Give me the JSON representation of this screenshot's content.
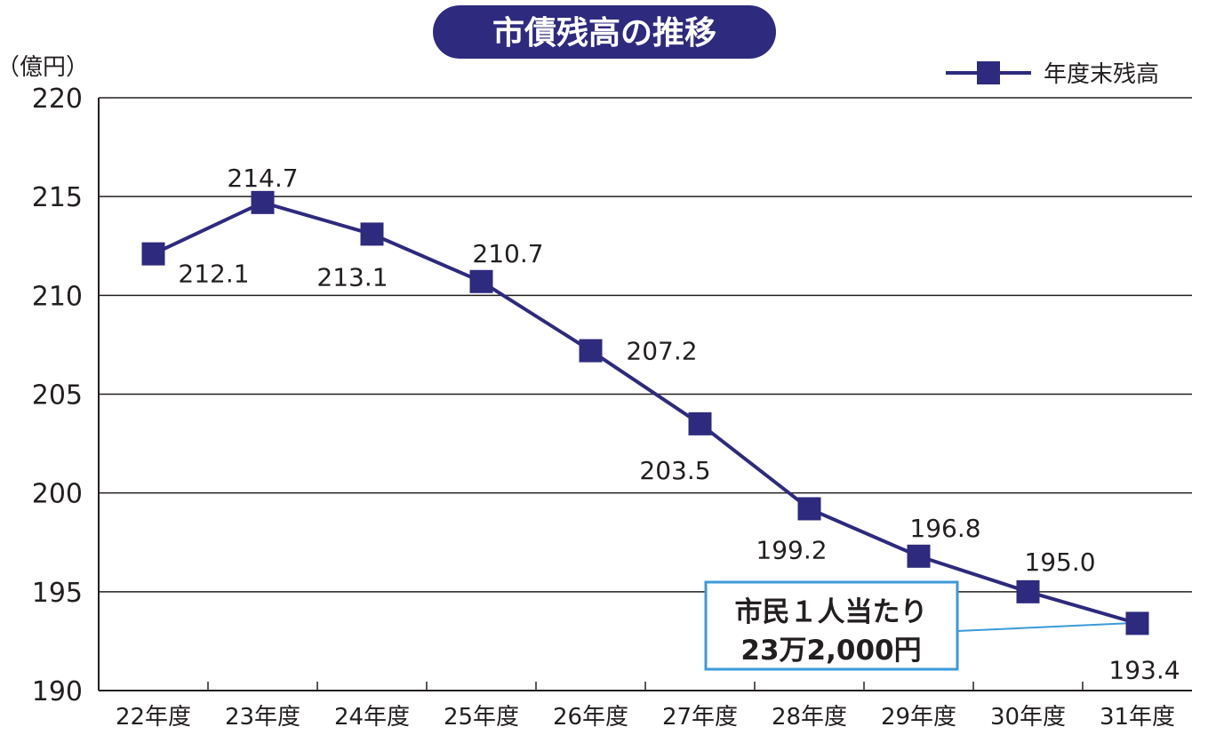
{
  "chart_data": {
    "type": "line",
    "title": "市債残高の推移",
    "ylabel": "（億円）",
    "ylim": [
      190,
      220
    ],
    "yticks": [
      190,
      195,
      200,
      205,
      210,
      215,
      220
    ],
    "categories": [
      "22年度",
      "23年度",
      "24年度",
      "25年度",
      "26年度",
      "27年度",
      "28年度",
      "29年度",
      "30年度",
      "31年度"
    ],
    "series": [
      {
        "name": "年度末残高",
        "values": [
          212.1,
          214.7,
          213.1,
          210.7,
          207.2,
          203.5,
          199.2,
          196.8,
          195.0,
          193.4
        ],
        "labels": [
          "212.1",
          "214.7",
          "213.1",
          "210.7",
          "207.2",
          "203.5",
          "199.2",
          "196.8",
          "195.0",
          "193.4"
        ]
      }
    ],
    "grid": true,
    "legend_position": "top-right",
    "annotation": {
      "line1": "市民１人当たり",
      "line2": "23万2,000円"
    },
    "colors": {
      "series": "#2e2a7e",
      "title_bg": "#2e2a7e",
      "grid": "#231f20",
      "callout_border": "#3b9ad9"
    }
  }
}
